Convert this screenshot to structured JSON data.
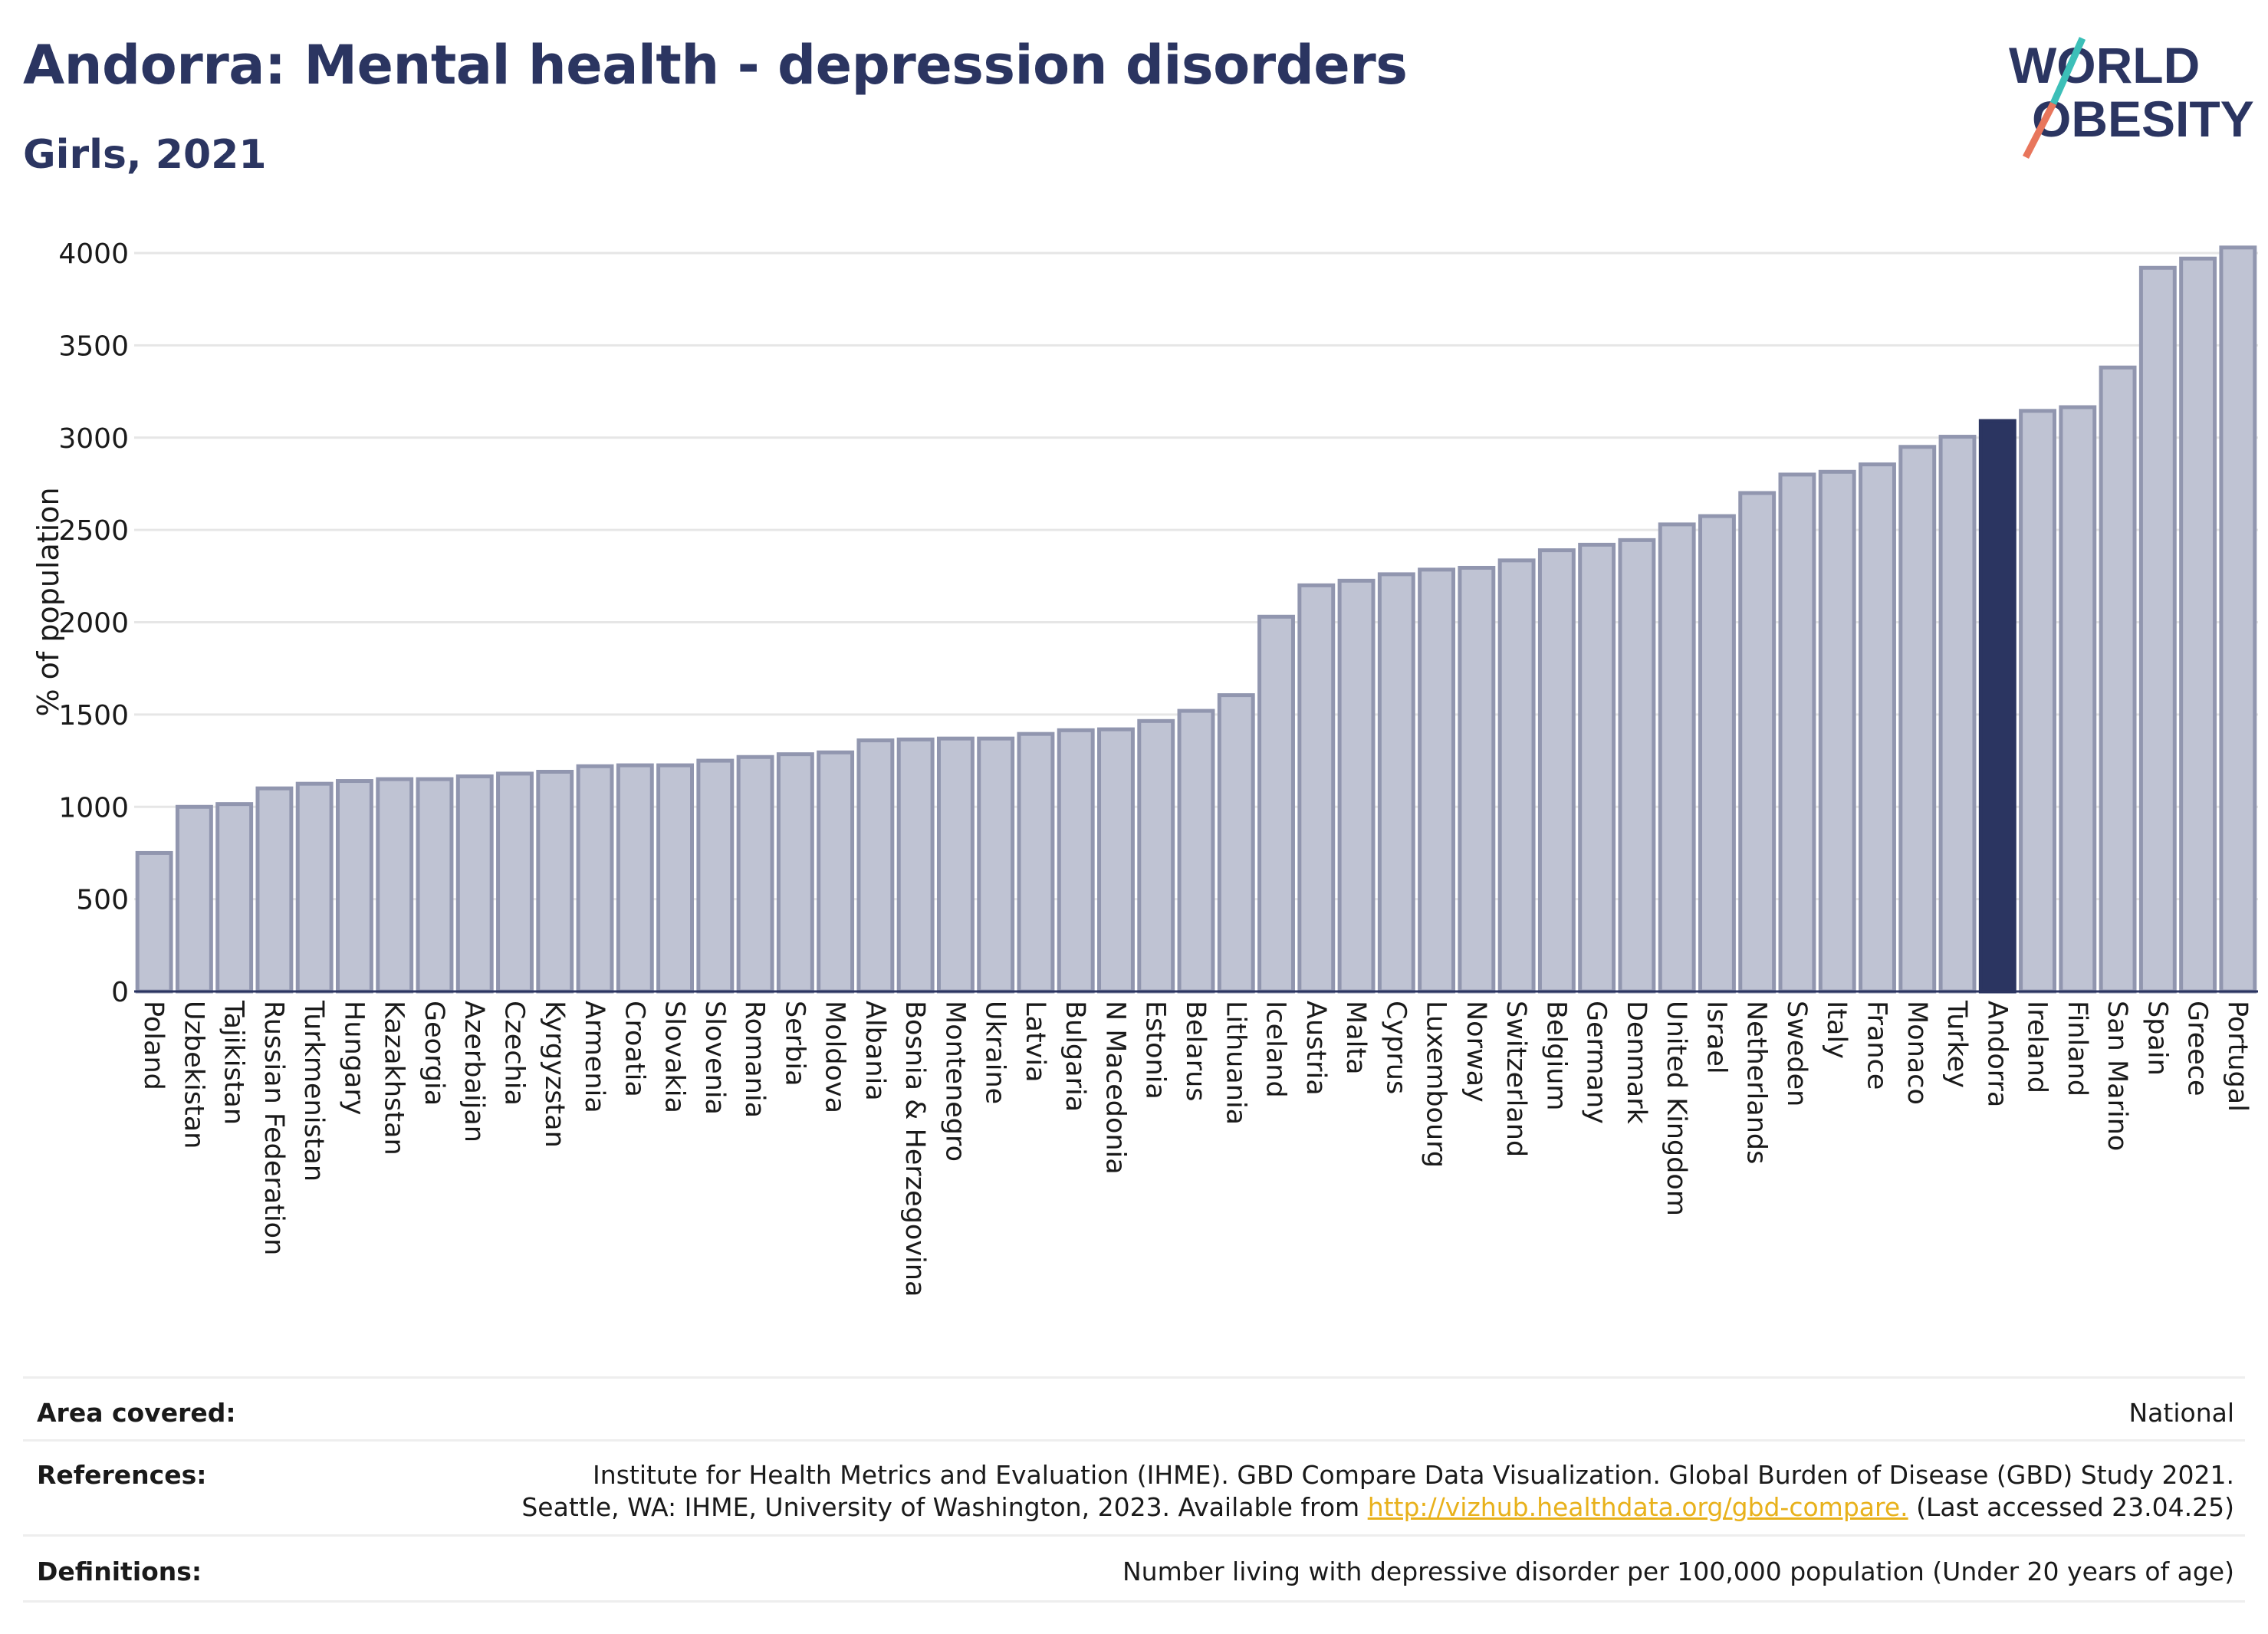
{
  "header": {
    "title": "Andorra: Mental health - depression disorders",
    "subtitle": "Girls, 2021"
  },
  "logo": {
    "line1": "WORLD",
    "line2": "OBESITY"
  },
  "colors": {
    "title": "#2b3561",
    "bar": "#bfc3d3",
    "bar_border": "#9196af",
    "highlight": "#2b3561",
    "grid": "#e6e6e6",
    "link": "#e8b11b",
    "logo_teal": "#3cbfb8",
    "logo_coral": "#e8765c"
  },
  "chart_data": {
    "type": "bar",
    "ylabel": "% of population",
    "ylim": [
      0,
      4000
    ],
    "yticks": [
      "0",
      "500",
      "1000",
      "1500",
      "2000",
      "2500",
      "3000",
      "3500",
      "4000"
    ],
    "highlight": "Andorra",
    "grid": true,
    "categories": [
      "Poland",
      "Uzbekistan",
      "Tajikistan",
      "Russian Federation",
      "Turkmenistan",
      "Hungary",
      "Kazakhstan",
      "Georgia",
      "Azerbaijan",
      "Czechia",
      "Kyrgyzstan",
      "Armenia",
      "Croatia",
      "Slovakia",
      "Slovenia",
      "Romania",
      "Serbia",
      "Moldova",
      "Albania",
      "Bosnia & Herzegovina",
      "Montenegro",
      "Ukraine",
      "Latvia",
      "Bulgaria",
      "N Macedonia",
      "Estonia",
      "Belarus",
      "Lithuania",
      "Iceland",
      "Austria",
      "Malta",
      "Cyprus",
      "Luxembourg",
      "Norway",
      "Switzerland",
      "Belgium",
      "Germany",
      "Denmark",
      "United Kingdom",
      "Israel",
      "Netherlands",
      "Sweden",
      "Italy",
      "France",
      "Monaco",
      "Turkey",
      "Andorra",
      "Ireland",
      "Finland",
      "San Marino",
      "Spain",
      "Greece",
      "Portugal"
    ],
    "values": [
      750,
      1000,
      1015,
      1100,
      1125,
      1140,
      1150,
      1150,
      1165,
      1180,
      1190,
      1220,
      1225,
      1225,
      1250,
      1270,
      1285,
      1295,
      1360,
      1365,
      1370,
      1370,
      1395,
      1415,
      1420,
      1465,
      1520,
      1605,
      2030,
      2200,
      2225,
      2260,
      2285,
      2295,
      2335,
      2390,
      2420,
      2445,
      2530,
      2575,
      2700,
      2800,
      2815,
      2855,
      2950,
      3005,
      3090,
      3145,
      3165,
      3380,
      3920,
      3970,
      4030
    ]
  },
  "footer": {
    "area_label": "Area covered:",
    "area_value": "National",
    "references_label": "References:",
    "references_line1": "Institute for Health Metrics and Evaluation (IHME). GBD Compare Data Visualization. Global Burden of Disease (GBD) Study 2021.",
    "references_line2_pre": "Seattle, WA: IHME, University of Washington, 2023. Available from ",
    "references_link": "http://vizhub.healthdata.org/gbd-compare.",
    "references_line2_post": " (Last accessed 23.04.25)",
    "definitions_label": "Definitions:",
    "definitions_value": "Number living with depressive disorder per 100,000 population (Under 20 years of age)"
  }
}
